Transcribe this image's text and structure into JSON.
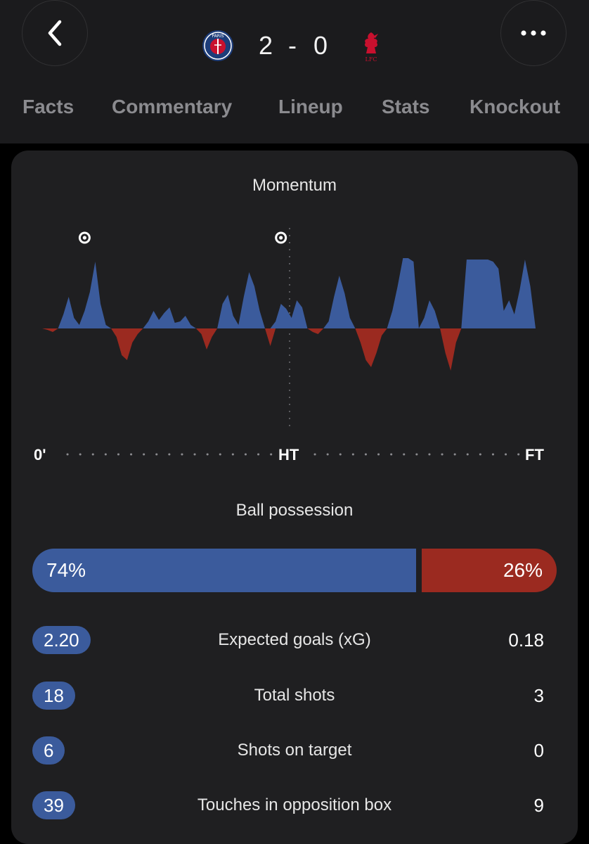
{
  "header": {
    "home_score": "2",
    "separator": "-",
    "away_score": "0",
    "home_crest_text": "PARIS",
    "away_crest_text": "LFC"
  },
  "tabs": [
    {
      "label": "Facts",
      "active": true
    },
    {
      "label": "Commentary",
      "active": false
    },
    {
      "label": "Lineup",
      "active": false
    },
    {
      "label": "Stats",
      "active": false
    },
    {
      "label": "Knockout",
      "active": false
    }
  ],
  "momentum": {
    "title": "Momentum",
    "start_label": "0'",
    "half_label": "HT",
    "end_label": "FT",
    "home_color": "#3b5b9c",
    "away_color": "#9b2a20",
    "goal_minutes": [
      8,
      45
    ],
    "series": [
      0,
      -2,
      -5,
      0,
      20,
      45,
      15,
      5,
      25,
      52,
      95,
      35,
      5,
      0,
      -12,
      -38,
      -45,
      -20,
      -8,
      0,
      10,
      25,
      12,
      22,
      30,
      8,
      10,
      18,
      5,
      0,
      -8,
      -30,
      -12,
      0,
      35,
      48,
      18,
      5,
      45,
      80,
      60,
      25,
      0,
      -25,
      10,
      35,
      28,
      15,
      40,
      30,
      0,
      -5,
      -8,
      0,
      10,
      45,
      75,
      50,
      15,
      0,
      -20,
      -45,
      -55,
      -35,
      -10,
      0,
      25,
      60,
      100,
      100,
      95,
      0,
      15,
      40,
      25,
      0,
      -35,
      -60,
      -20,
      0,
      98,
      98,
      98,
      98,
      98,
      95,
      85,
      25,
      40,
      20,
      55,
      98,
      60,
      0
    ]
  },
  "possession": {
    "title": "Ball possession",
    "home": 74,
    "away": 26,
    "home_label": "74%",
    "away_label": "26%"
  },
  "stats": [
    {
      "label": "Expected goals (xG)",
      "home": "2.20",
      "away": "0.18"
    },
    {
      "label": "Total shots",
      "home": "18",
      "away": "3"
    },
    {
      "label": "Shots on target",
      "home": "6",
      "away": "0"
    },
    {
      "label": "Touches in opposition box",
      "home": "39",
      "away": "9"
    }
  ]
}
